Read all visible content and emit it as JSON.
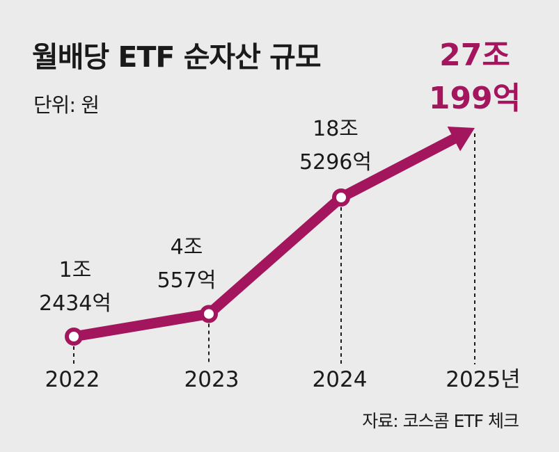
{
  "title": "월배당 ETF 순자산 규모",
  "unit": "단위: 원",
  "source": "자료: 코스콤 ETF 체크",
  "colors": {
    "accent": "#a3165e",
    "background": "#ebebeb",
    "text": "#1a1a1a"
  },
  "chart_data": {
    "type": "line",
    "title": "월배당 ETF 순자산 규모",
    "unit": "원",
    "categories": [
      "2022",
      "2023",
      "2024",
      "2025년"
    ],
    "values": [
      12434,
      40557,
      185296,
      270199
    ],
    "value_unit": "억 원",
    "data_labels": [
      [
        "1조",
        "2434억"
      ],
      [
        "4조",
        "557억"
      ],
      [
        "18조",
        "5296억"
      ],
      [
        "27조",
        "199억"
      ]
    ],
    "highlight_index": 3,
    "last_point_arrow": true,
    "grid": false,
    "legend": "none"
  }
}
